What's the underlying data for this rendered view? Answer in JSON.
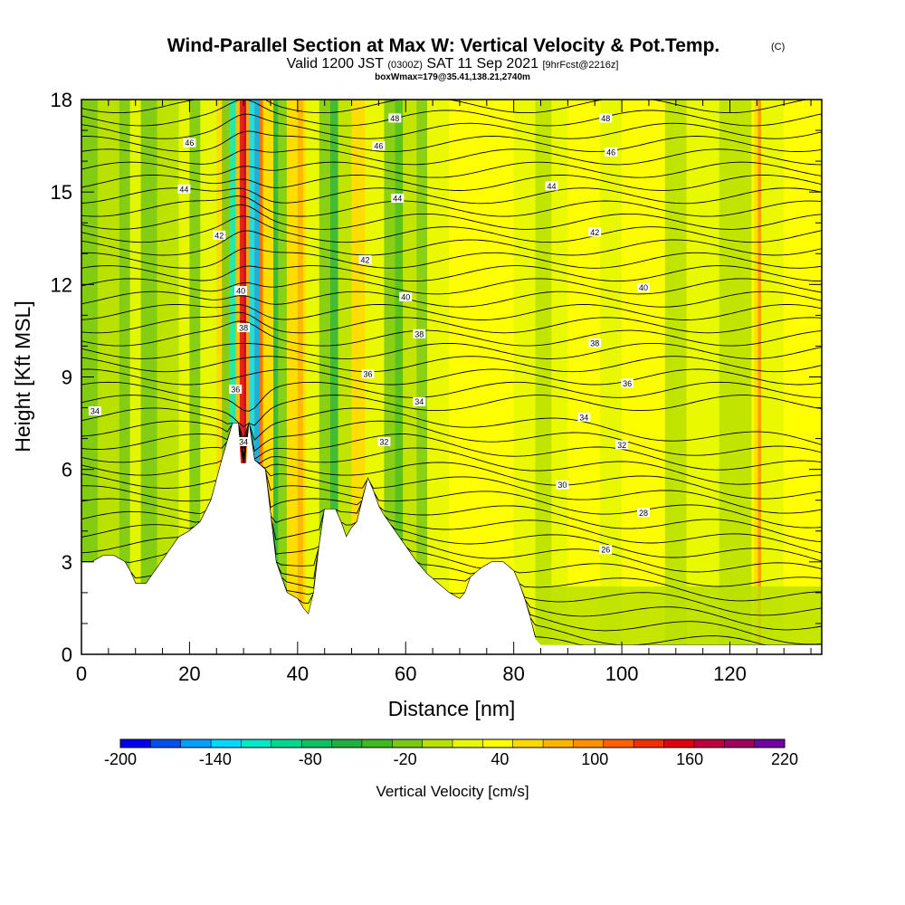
{
  "chart_data": {
    "type": "heatmap",
    "title": "Wind-Parallel Section at Max W: Vertical Velocity & Pot.Temp.",
    "title_tag": "(C)",
    "subtitle": {
      "valid_prefix": "Valid 1200 JST",
      "zulu": "(0300Z)",
      "date": "SAT 11 Sep 2021",
      "forecast": "[9hrFcst@2216z]"
    },
    "box_info": "boxWmax=179@35.41,138.21,2740m",
    "xlabel": "Distance [nm]",
    "ylabel": "Height [Kft MSL]",
    "xlim": [
      0,
      137
    ],
    "ylim": [
      0,
      18
    ],
    "x_ticks": [
      0,
      20,
      40,
      60,
      80,
      100,
      120
    ],
    "y_ticks": [
      0,
      3,
      6,
      9,
      12,
      15,
      18
    ],
    "grid": false,
    "colorbar": {
      "label": "Vertical Velocity [cm/s]",
      "tick_labels": [
        "-200",
        "-140",
        "-80",
        "-20",
        "40",
        "100",
        "160",
        "220"
      ],
      "min": -200,
      "max": 220,
      "step": 20,
      "colors": [
        "#0000f0",
        "#0050f0",
        "#00a0ff",
        "#00d8ff",
        "#00e8c8",
        "#00d890",
        "#10c060",
        "#20b040",
        "#40b820",
        "#78c818",
        "#b8e000",
        "#e8f800",
        "#ffff00",
        "#ffd800",
        "#ffb400",
        "#ff9000",
        "#ff6000",
        "#f03000",
        "#e00010",
        "#c00040",
        "#a00060",
        "#7000a0"
      ]
    },
    "terrain_kft": [
      [
        0,
        3.0
      ],
      [
        2,
        3.0
      ],
      [
        4,
        3.2
      ],
      [
        6,
        3.2
      ],
      [
        8,
        3.0
      ],
      [
        9,
        2.7
      ],
      [
        10,
        2.3
      ],
      [
        12,
        2.3
      ],
      [
        14,
        2.8
      ],
      [
        16,
        3.3
      ],
      [
        18,
        3.8
      ],
      [
        20,
        4.0
      ],
      [
        22,
        4.3
      ],
      [
        24,
        5.0
      ],
      [
        26,
        6.3
      ],
      [
        28,
        7.5
      ],
      [
        29,
        7.5
      ],
      [
        29.5,
        6.2
      ],
      [
        30.5,
        6.2
      ],
      [
        31,
        7.5
      ],
      [
        32,
        6.3
      ],
      [
        34,
        6.0
      ],
      [
        35,
        4.5
      ],
      [
        36,
        3.0
      ],
      [
        37,
        2.5
      ],
      [
        38,
        2.0
      ],
      [
        40,
        1.8
      ],
      [
        41,
        1.5
      ],
      [
        42,
        1.3
      ],
      [
        43,
        2.0
      ],
      [
        44,
        3.5
      ],
      [
        45,
        4.7
      ],
      [
        47,
        4.7
      ],
      [
        48,
        4.3
      ],
      [
        49,
        3.8
      ],
      [
        50,
        4.1
      ],
      [
        51,
        4.3
      ],
      [
        52,
        5.0
      ],
      [
        53,
        5.7
      ],
      [
        54,
        5.3
      ],
      [
        55,
        4.8
      ],
      [
        56,
        4.5
      ],
      [
        58,
        4.0
      ],
      [
        60,
        3.5
      ],
      [
        62,
        3.0
      ],
      [
        64,
        2.6
      ],
      [
        66,
        2.3
      ],
      [
        68,
        2.0
      ],
      [
        70,
        1.8
      ],
      [
        71,
        2.0
      ],
      [
        72,
        2.5
      ],
      [
        74,
        2.8
      ],
      [
        76,
        3.0
      ],
      [
        78,
        3.0
      ],
      [
        80,
        2.7
      ],
      [
        81,
        2.3
      ],
      [
        82,
        1.8
      ],
      [
        83,
        1.2
      ],
      [
        84,
        0.5
      ],
      [
        85,
        0.3
      ],
      [
        137,
        0.3
      ]
    ],
    "contour_labels": [
      {
        "x": 2.5,
        "y": 7.9,
        "t": "34"
      },
      {
        "x": 28.5,
        "y": 8.6,
        "t": "36"
      },
      {
        "x": 30,
        "y": 10.6,
        "t": "38"
      },
      {
        "x": 29.5,
        "y": 11.8,
        "t": "40"
      },
      {
        "x": 25.5,
        "y": 13.6,
        "t": "42"
      },
      {
        "x": 19,
        "y": 15.1,
        "t": "44"
      },
      {
        "x": 20,
        "y": 16.6,
        "t": "46"
      },
      {
        "x": 52.5,
        "y": 12.8,
        "t": "42"
      },
      {
        "x": 58.5,
        "y": 14.8,
        "t": "44"
      },
      {
        "x": 55,
        "y": 16.5,
        "t": "46"
      },
      {
        "x": 58,
        "y": 17.4,
        "t": "48"
      },
      {
        "x": 60,
        "y": 11.6,
        "t": "40"
      },
      {
        "x": 62.5,
        "y": 10.4,
        "t": "38"
      },
      {
        "x": 53,
        "y": 9.1,
        "t": "36"
      },
      {
        "x": 62.5,
        "y": 8.2,
        "t": "34"
      },
      {
        "x": 56,
        "y": 6.9,
        "t": "32"
      },
      {
        "x": 30,
        "y": 6.9,
        "t": "34"
      },
      {
        "x": 97,
        "y": 17.4,
        "t": "48"
      },
      {
        "x": 98,
        "y": 16.3,
        "t": "46"
      },
      {
        "x": 87,
        "y": 15.2,
        "t": "44"
      },
      {
        "x": 95,
        "y": 13.7,
        "t": "42"
      },
      {
        "x": 104,
        "y": 11.9,
        "t": "40"
      },
      {
        "x": 95,
        "y": 10.1,
        "t": "38"
      },
      {
        "x": 101,
        "y": 8.8,
        "t": "36"
      },
      {
        "x": 93,
        "y": 7.7,
        "t": "34"
      },
      {
        "x": 100,
        "y": 6.8,
        "t": "32"
      },
      {
        "x": 89,
        "y": 5.5,
        "t": "30"
      },
      {
        "x": 104,
        "y": 4.6,
        "t": "28"
      },
      {
        "x": 97,
        "y": 3.4,
        "t": "26"
      }
    ]
  }
}
